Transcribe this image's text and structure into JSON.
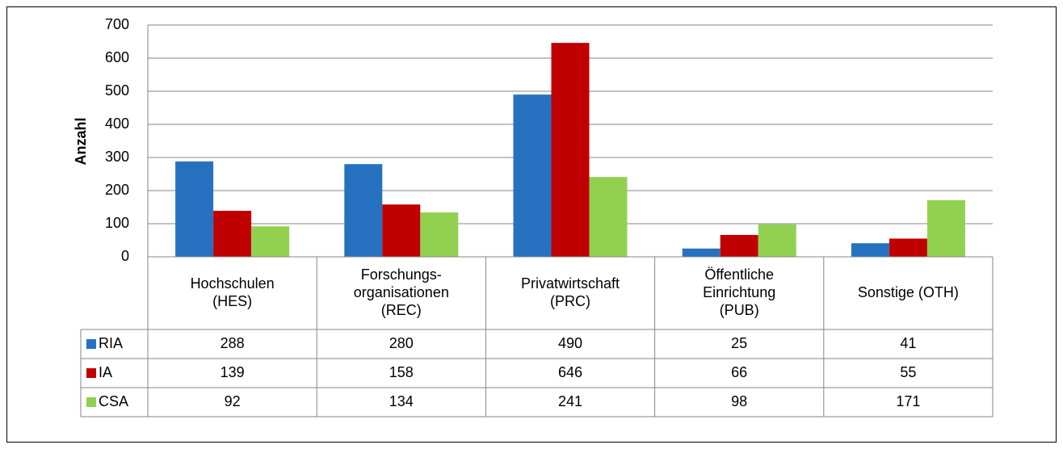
{
  "chart_data": {
    "type": "bar",
    "y_label": "Anzahl",
    "categories": [
      [
        "Hochschulen",
        "(HES)"
      ],
      [
        "Forschungs-",
        "organisationen",
        "(REC)"
      ],
      [
        "Privatwirtschaft",
        "(PRC)"
      ],
      [
        "Öffentliche",
        "Einrichtung",
        "(PUB)"
      ],
      [
        "Sonstige (OTH)"
      ]
    ],
    "series": [
      {
        "name": "RIA",
        "color": "#2672c0",
        "values": [
          288,
          280,
          490,
          25,
          41
        ]
      },
      {
        "name": "IA",
        "color": "#c00000",
        "values": [
          139,
          158,
          646,
          66,
          55
        ]
      },
      {
        "name": "CSA",
        "color": "#92d050",
        "values": [
          92,
          134,
          241,
          98,
          171
        ]
      }
    ],
    "ylim": [
      0,
      700
    ],
    "yticks": [
      0,
      100,
      200,
      300,
      400,
      500,
      600,
      700
    ],
    "grid": true,
    "data_table": true
  }
}
